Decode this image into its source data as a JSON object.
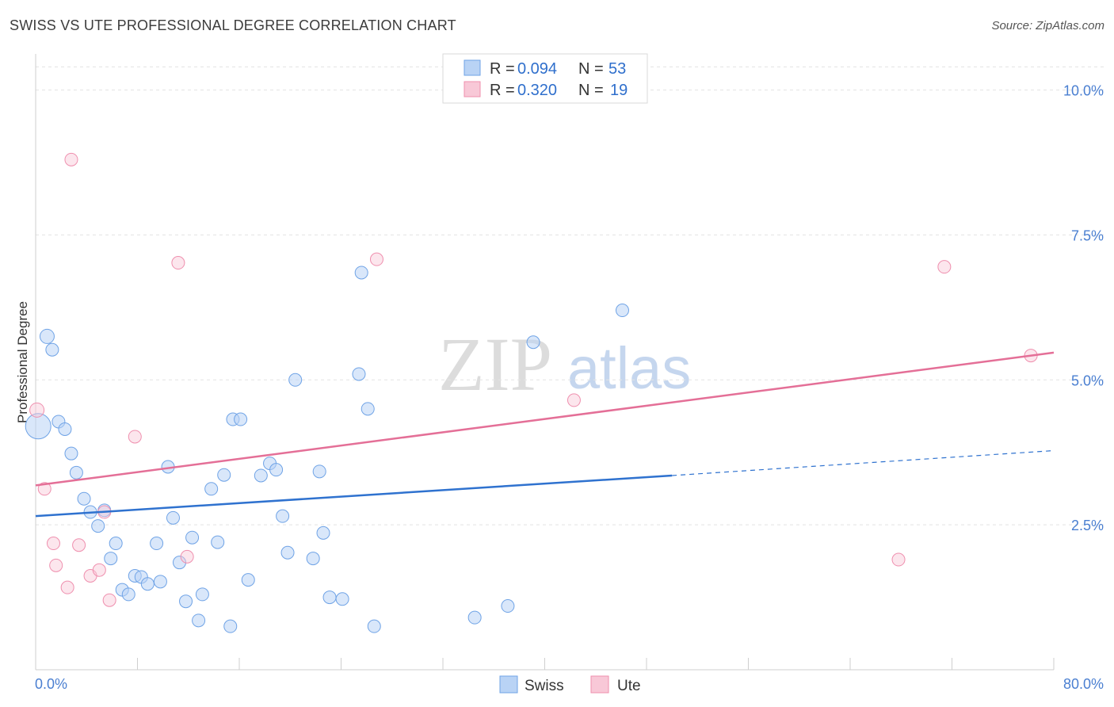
{
  "title": "SWISS VS UTE PROFESSIONAL DEGREE CORRELATION CHART",
  "source": "Source: ZipAtlas.com",
  "watermark": {
    "zip": "ZIP",
    "atlas": "atlas"
  },
  "colors": {
    "swiss": "#6fa3e6",
    "swiss_line": "#2f72cf",
    "ute": "#ef8fae",
    "ute_line": "#e46f97",
    "axis_text": "#4a7fd1"
  },
  "legend": {
    "r_label": "R =",
    "n_label": "N =",
    "entries": [
      {
        "name": "Swiss",
        "r": "0.094",
        "n": "53"
      },
      {
        "name": "Ute",
        "r": "0.320",
        "n": "19"
      }
    ]
  },
  "chart_data": {
    "type": "scatter",
    "title": "SWISS VS UTE PROFESSIONAL DEGREE CORRELATION CHART",
    "xlabel": "",
    "ylabel": "Professional Degree",
    "xlim": [
      0,
      80
    ],
    "ylim": [
      0,
      10.5
    ],
    "x_tick_labels": [
      "0.0%",
      "80.0%"
    ],
    "y_ticks": [
      2.5,
      5.0,
      7.5,
      10.0
    ],
    "y_tick_labels": [
      "2.5%",
      "5.0%",
      "7.5%",
      "10.0%"
    ],
    "series": [
      {
        "name": "Swiss",
        "r": 0.094,
        "n": 53,
        "trend": {
          "x0": 0,
          "y0": 2.65,
          "x1": 50,
          "y1": 3.35,
          "dash_x1": 80,
          "dash_y1": 3.78
        },
        "points": [
          [
            0.2,
            4.2,
            16
          ],
          [
            0.9,
            5.75,
            9
          ],
          [
            1.3,
            5.52,
            8
          ],
          [
            1.8,
            4.28,
            8
          ],
          [
            2.3,
            4.15,
            8
          ],
          [
            2.8,
            3.73,
            8
          ],
          [
            3.2,
            3.4,
            8
          ],
          [
            3.8,
            2.95,
            8
          ],
          [
            4.3,
            2.72,
            8
          ],
          [
            4.9,
            2.48,
            8
          ],
          [
            5.4,
            2.75,
            8
          ],
          [
            5.9,
            1.92,
            8
          ],
          [
            6.3,
            2.18,
            8
          ],
          [
            6.8,
            1.38,
            8
          ],
          [
            7.3,
            1.3,
            8
          ],
          [
            7.8,
            1.62,
            8
          ],
          [
            8.3,
            1.6,
            8
          ],
          [
            8.8,
            1.48,
            8
          ],
          [
            9.5,
            2.18,
            8
          ],
          [
            9.8,
            1.52,
            8
          ],
          [
            10.4,
            3.5,
            8
          ],
          [
            10.8,
            2.62,
            8
          ],
          [
            11.3,
            1.85,
            8
          ],
          [
            11.8,
            1.18,
            8
          ],
          [
            12.3,
            2.28,
            8
          ],
          [
            12.8,
            0.85,
            8
          ],
          [
            13.1,
            1.3,
            8
          ],
          [
            13.8,
            3.12,
            8
          ],
          [
            14.3,
            2.2,
            8
          ],
          [
            14.8,
            3.36,
            8
          ],
          [
            15.3,
            0.75,
            8
          ],
          [
            15.5,
            4.32,
            8
          ],
          [
            16.1,
            4.32,
            8
          ],
          [
            16.7,
            1.55,
            8
          ],
          [
            17.7,
            3.35,
            8
          ],
          [
            18.4,
            3.56,
            8
          ],
          [
            18.9,
            3.45,
            8
          ],
          [
            19.4,
            2.65,
            8
          ],
          [
            19.8,
            2.02,
            8
          ],
          [
            20.4,
            5.0,
            8
          ],
          [
            21.8,
            1.92,
            8
          ],
          [
            22.3,
            3.42,
            8
          ],
          [
            22.6,
            2.36,
            8
          ],
          [
            23.1,
            1.25,
            8
          ],
          [
            24.1,
            1.22,
            8
          ],
          [
            25.4,
            5.1,
            8
          ],
          [
            25.6,
            6.85,
            8
          ],
          [
            26.1,
            4.5,
            8
          ],
          [
            26.6,
            0.75,
            8
          ],
          [
            34.5,
            0.9,
            8
          ],
          [
            37.1,
            1.1,
            8
          ],
          [
            39.1,
            5.65,
            8
          ],
          [
            46.1,
            6.2,
            8
          ]
        ]
      },
      {
        "name": "Ute",
        "r": 0.32,
        "n": 19,
        "trend": {
          "x0": 0,
          "y0": 3.18,
          "x1": 80,
          "y1": 5.47
        },
        "points": [
          [
            0.1,
            4.48,
            9
          ],
          [
            0.7,
            3.12,
            8
          ],
          [
            1.4,
            2.18,
            8
          ],
          [
            1.6,
            1.8,
            8
          ],
          [
            2.5,
            1.42,
            8
          ],
          [
            2.8,
            8.8,
            8
          ],
          [
            3.4,
            2.15,
            8
          ],
          [
            4.3,
            1.62,
            8
          ],
          [
            5.0,
            1.72,
            8
          ],
          [
            5.4,
            2.72,
            8
          ],
          [
            5.8,
            1.2,
            8
          ],
          [
            7.8,
            4.02,
            8
          ],
          [
            11.2,
            7.02,
            8
          ],
          [
            11.9,
            1.95,
            8
          ],
          [
            26.8,
            7.08,
            8
          ],
          [
            42.3,
            4.65,
            8
          ],
          [
            67.8,
            1.9,
            8
          ],
          [
            71.4,
            6.95,
            8
          ],
          [
            78.2,
            5.42,
            8
          ]
        ]
      }
    ]
  }
}
